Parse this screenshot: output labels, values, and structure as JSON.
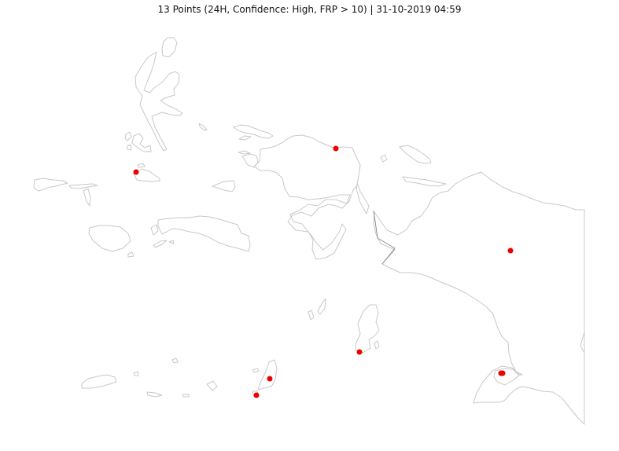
{
  "title": "13 Points (24H, Confidence: High, FRP > 10) | 31-10-2019 04:59",
  "colors": {
    "land_outline": "#c8c8c8",
    "border": "#8c8c8c",
    "hotspot": "#ee0000",
    "background": "#ffffff"
  },
  "hotspot_count": 13
}
